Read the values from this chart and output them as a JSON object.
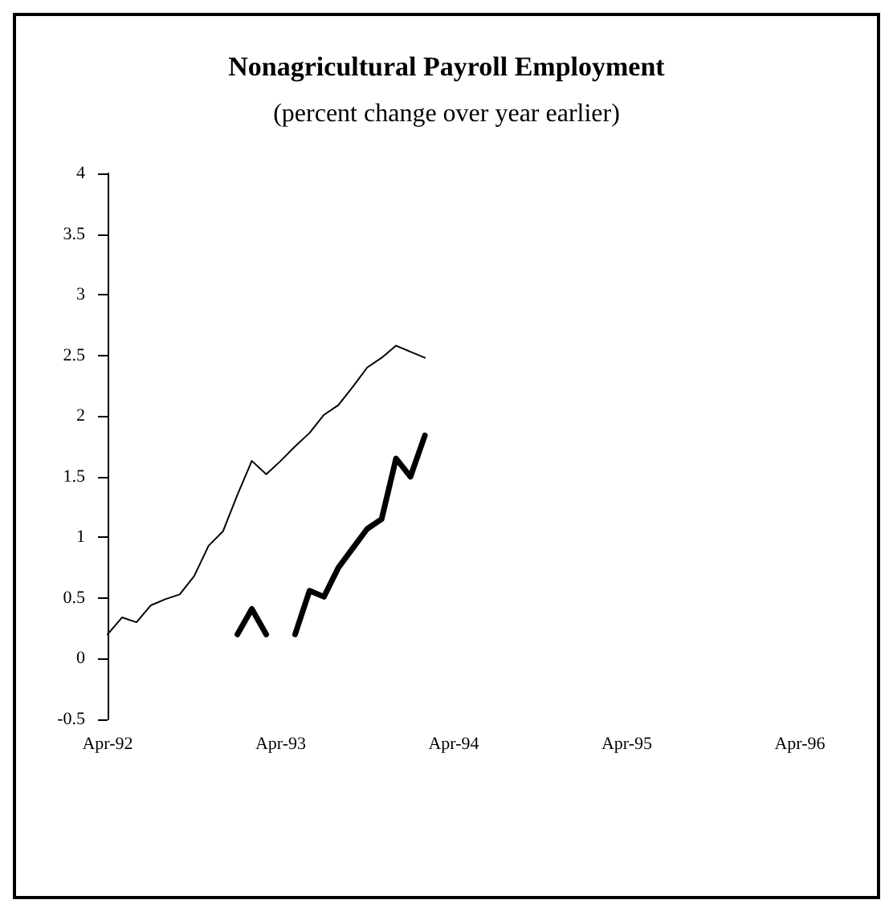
{
  "chart_data": {
    "type": "line",
    "title": "Nonagricultural Payroll Employment",
    "subtitle": "(percent change over year earlier)",
    "x": [
      "1992-04",
      "1992-05",
      "1992-06",
      "1992-07",
      "1992-08",
      "1992-09",
      "1992-10",
      "1992-11",
      "1992-12",
      "1993-01",
      "1993-02",
      "1993-03",
      "1993-04",
      "1993-05",
      "1993-06",
      "1993-07",
      "1993-08",
      "1993-09",
      "1993-10",
      "1993-11",
      "1993-12",
      "1994-01",
      "1994-02"
    ],
    "series": [
      {
        "color": "#000000",
        "values": [
          0.2,
          0.34,
          0.3,
          0.44,
          0.49,
          0.53,
          0.68,
          0.93,
          1.05,
          1.35,
          1.63,
          1.52,
          1.63,
          1.75,
          1.86,
          2.01,
          2.09,
          2.24,
          2.4,
          2.48,
          2.58,
          2.53,
          2.48
        ]
      },
      {
        "color": "#000000",
        "values": [
          null,
          null,
          null,
          null,
          null,
          null,
          null,
          null,
          null,
          0.2,
          0.41,
          0.2,
          null,
          0.2,
          0.56,
          0.51,
          0.75,
          0.91,
          1.07,
          1.15,
          1.65,
          1.5,
          1.84
        ]
      }
    ],
    "xlim": [
      "1992-04",
      "1996-04"
    ],
    "xticks": [
      {
        "value": "1992-04",
        "label": "Apr-92"
      },
      {
        "value": "1993-04",
        "label": "Apr-93"
      },
      {
        "value": "1994-04",
        "label": "Apr-94"
      },
      {
        "value": "1995-04",
        "label": "Apr-95"
      },
      {
        "value": "1996-04",
        "label": "Apr-96"
      }
    ],
    "ylim": [
      -0.5,
      4
    ],
    "yticks": [
      -0.5,
      0,
      0.5,
      1,
      1.5,
      2,
      2.5,
      3,
      3.5,
      4
    ],
    "grid": false,
    "marker": "none",
    "line_style": "solid"
  }
}
